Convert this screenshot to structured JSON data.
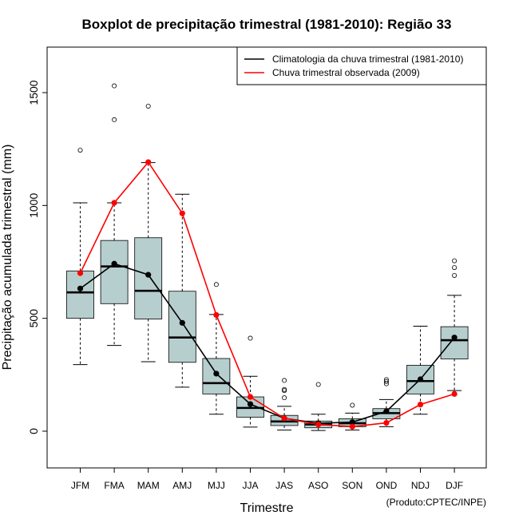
{
  "chart_data": {
    "type": "boxplot",
    "title": "Boxplot de precipitação trimestral (1981-2010): Região 33",
    "xlabel": "Trimestre",
    "ylabel": "Precipitação acumulada trimestral (mm)",
    "credit": "(Produto:CPTEC/INPE)",
    "ylim": [
      -160,
      1700
    ],
    "yticks": [
      "0",
      "500",
      "1000",
      "1500"
    ],
    "categories": [
      "JFM",
      "FMA",
      "MAM",
      "AMJ",
      "MJJ",
      "JJA",
      "JAS",
      "ASO",
      "SON",
      "OND",
      "NDJ",
      "DJF"
    ],
    "boxes": [
      {
        "whisker_low": 295,
        "q1": 500,
        "median": 615,
        "q3": 710,
        "whisker_high": 1012,
        "outliers": [
          1245
        ]
      },
      {
        "whisker_low": 380,
        "q1": 565,
        "median": 730,
        "q3": 845,
        "whisker_high": 1012,
        "outliers": [
          1380,
          1530
        ]
      },
      {
        "whisker_low": 308,
        "q1": 497,
        "median": 622,
        "q3": 857,
        "whisker_high": 1190,
        "outliers": [
          1440
        ]
      },
      {
        "whisker_low": 195,
        "q1": 305,
        "median": 415,
        "q3": 620,
        "whisker_high": 1050,
        "outliers": []
      },
      {
        "whisker_low": 75,
        "q1": 165,
        "median": 213,
        "q3": 322,
        "whisker_high": 517,
        "outliers": [
          650
        ]
      },
      {
        "whisker_low": 18,
        "q1": 62,
        "median": 103,
        "q3": 152,
        "whisker_high": 243,
        "outliers": [
          412
        ]
      },
      {
        "whisker_low": 5,
        "q1": 25,
        "median": 43,
        "q3": 70,
        "whisker_high": 110,
        "outliers": [
          148,
          180,
          185,
          225
        ]
      },
      {
        "whisker_low": 3,
        "q1": 15,
        "median": 30,
        "q3": 45,
        "whisker_high": 75,
        "outliers": [
          207
        ]
      },
      {
        "whisker_low": 5,
        "q1": 20,
        "median": 35,
        "q3": 55,
        "whisker_high": 80,
        "outliers": [
          115
        ]
      },
      {
        "whisker_low": 20,
        "q1": 55,
        "median": 80,
        "q3": 100,
        "whisker_high": 140,
        "outliers": [
          210,
          220,
          228
        ]
      },
      {
        "whisker_low": 75,
        "q1": 165,
        "median": 222,
        "q3": 292,
        "whisker_high": 465,
        "outliers": []
      },
      {
        "whisker_low": 180,
        "q1": 320,
        "median": 403,
        "q3": 463,
        "whisker_high": 602,
        "outliers": [
          690,
          725,
          755
        ]
      }
    ],
    "series": [
      {
        "name": "Climatologia da chuva trimestral (1981-2010)",
        "color": "#000000",
        "values": [
          632,
          742,
          693,
          480,
          255,
          120,
          57,
          35,
          40,
          88,
          230,
          415
        ]
      },
      {
        "name": "Chuva trimestral observada (2009)",
        "color": "#ff0000",
        "values": [
          700,
          1012,
          1192,
          965,
          515,
          152,
          57,
          30,
          20,
          37,
          118,
          165
        ]
      }
    ],
    "box_fill": "#b7cece",
    "legend_position": "top-right"
  }
}
